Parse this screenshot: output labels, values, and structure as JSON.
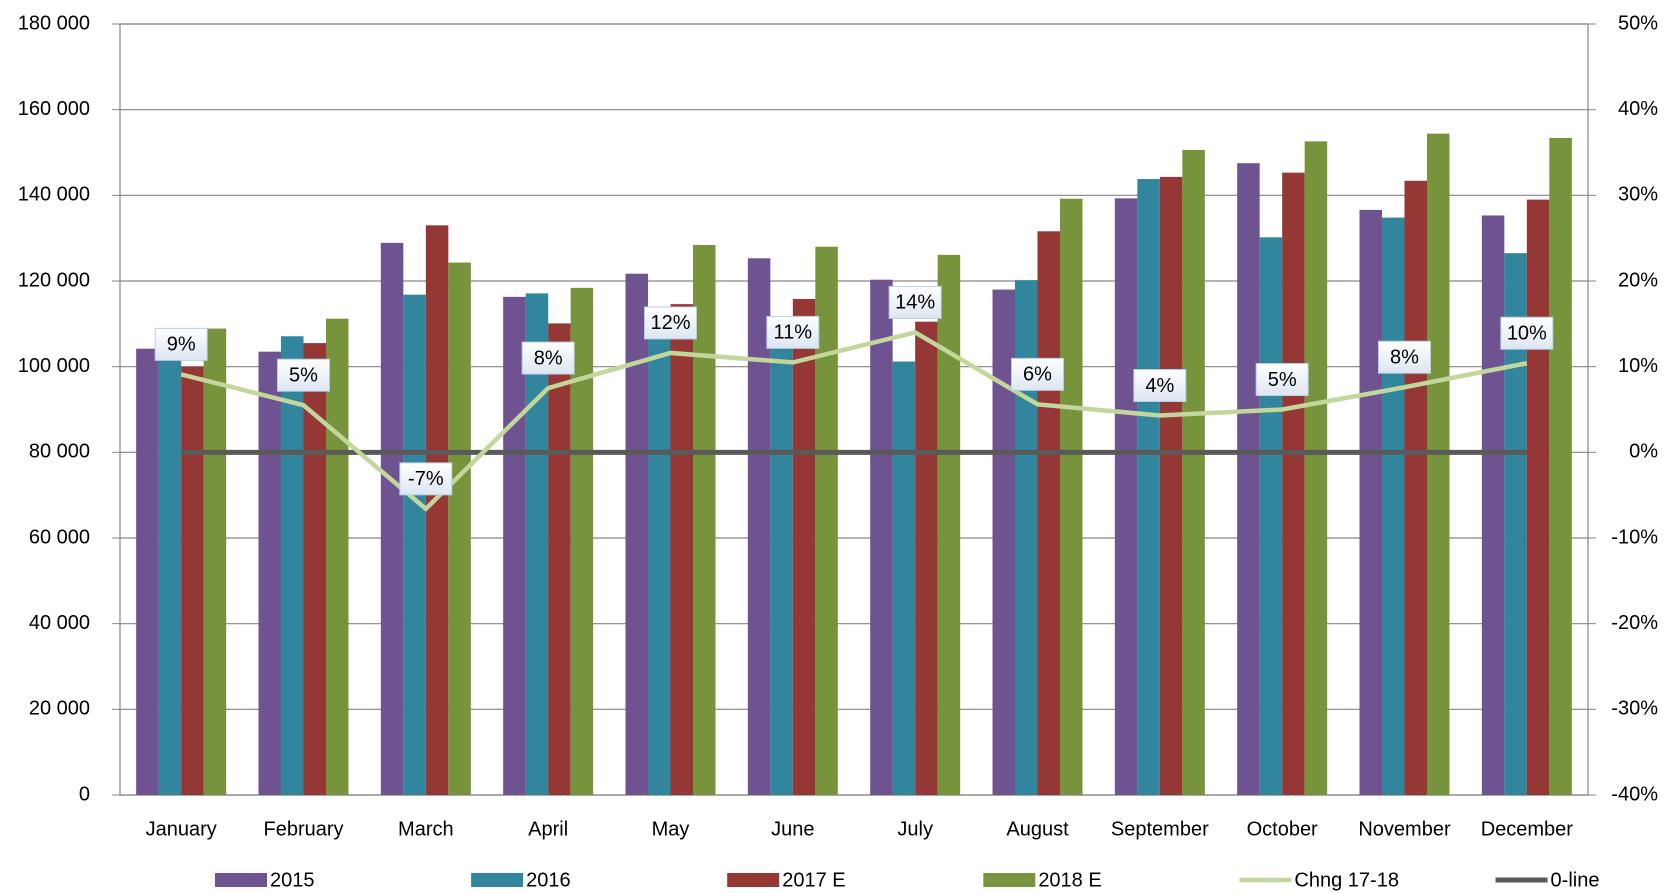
{
  "chart_data": {
    "type": "bar",
    "categories": [
      "January",
      "February",
      "March",
      "April",
      "May",
      "June",
      "July",
      "August",
      "September",
      "October",
      "November",
      "December"
    ],
    "series": [
      {
        "name": "2015",
        "color": "#6f5391",
        "values": [
          104200,
          103500,
          128900,
          116300,
          121700,
          125300,
          120300,
          118000,
          139300,
          147500,
          136600,
          135300
        ]
      },
      {
        "name": "2016",
        "color": "#31859c",
        "values": [
          102000,
          107100,
          116800,
          117100,
          108000,
          108000,
          101200,
          120200,
          143800,
          130200,
          134800,
          126500
        ]
      },
      {
        "name": "2017 E",
        "color": "#953735",
        "values": [
          100000,
          105500,
          133000,
          110100,
          114600,
          115800,
          110500,
          131600,
          144300,
          145300,
          143400,
          139000
        ]
      },
      {
        "name": "2018 E",
        "color": "#77933c",
        "values": [
          108900,
          111200,
          124300,
          118400,
          128400,
          128000,
          126100,
          139200,
          150600,
          152600,
          154400,
          153400
        ]
      },
      {
        "name": "Chng  17-18",
        "type": "line",
        "axis": "y2",
        "color": "#c3d69b",
        "values": [
          9.1,
          5.5,
          -6.6,
          7.5,
          11.6,
          10.5,
          14,
          5.6,
          4.3,
          5,
          7.6,
          10.4
        ],
        "value_labels": [
          "9%",
          "5%",
          "-7%",
          "8%",
          "12%",
          "11%",
          "14%",
          "6%",
          "4%",
          "5%",
          "8%",
          "10%"
        ]
      },
      {
        "name": "0-line",
        "type": "line",
        "axis": "y2",
        "color": "#595959",
        "values": [
          0,
          0,
          0,
          0,
          0,
          0,
          0,
          0,
          0,
          0,
          0,
          0
        ]
      }
    ],
    "ylim": [
      0,
      180000
    ],
    "yticks": [
      {
        "value": 0,
        "label": "0"
      },
      {
        "value": 20000,
        "label": "20 000"
      },
      {
        "value": 40000,
        "label": "40 000"
      },
      {
        "value": 60000,
        "label": "60 000"
      },
      {
        "value": 80000,
        "label": "80 000"
      },
      {
        "value": 100000,
        "label": "100 000"
      },
      {
        "value": 120000,
        "label": "120 000"
      },
      {
        "value": 140000,
        "label": "140 000"
      },
      {
        "value": 160000,
        "label": "160 000"
      },
      {
        "value": 180000,
        "label": "180 000"
      }
    ],
    "y2lim": [
      -40,
      50
    ],
    "y2ticks": [
      {
        "value": -40,
        "label": "-40%"
      },
      {
        "value": -30,
        "label": "-30%"
      },
      {
        "value": -20,
        "label": "-20%"
      },
      {
        "value": -10,
        "label": "-10%"
      },
      {
        "value": 0,
        "label": "0%"
      },
      {
        "value": 10,
        "label": "10%"
      },
      {
        "value": 20,
        "label": "20%"
      },
      {
        "value": 30,
        "label": "30%"
      },
      {
        "value": 40,
        "label": "40%"
      },
      {
        "value": 50,
        "label": "50%"
      }
    ],
    "grid": true,
    "legend": "bottom"
  }
}
